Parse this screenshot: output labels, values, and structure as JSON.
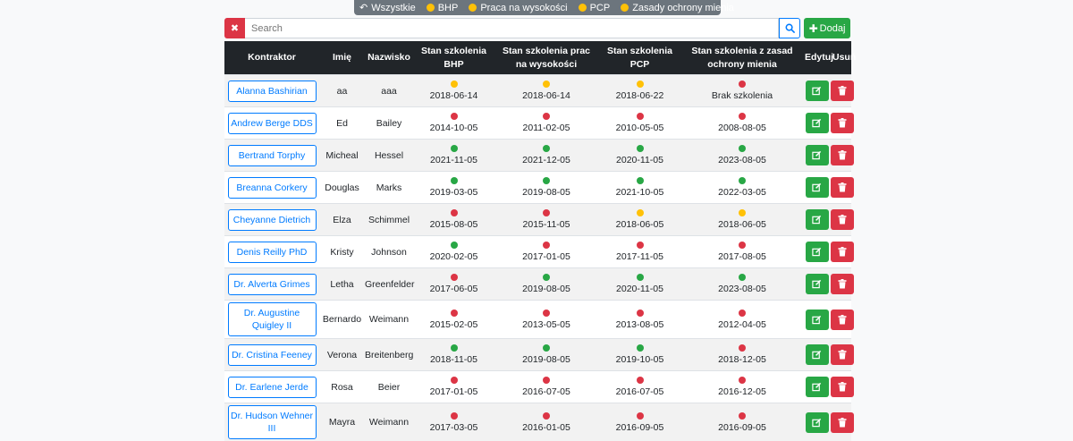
{
  "filters": [
    {
      "label": "Wszystkie",
      "icon": "undo-icon"
    },
    {
      "label": "BHP",
      "icon": "dot-icon"
    },
    {
      "label": "Praca na wysokości",
      "icon": "dot-icon"
    },
    {
      "label": "PCP",
      "icon": "dot-icon"
    },
    {
      "label": "Zasady ochrony mienia",
      "icon": "dot-icon"
    }
  ],
  "search": {
    "placeholder": "Search",
    "value": ""
  },
  "add_label": "Dodaj",
  "headers": [
    "Kontraktor",
    "Imię",
    "Nazwisko",
    "Stan szkolenia BHP",
    "Stan szkolenia prac na wysokości",
    "Stan szkolenia PCP",
    "Stan szkolenia z zasad ochrony mienia",
    "Edytuj",
    "Usuń"
  ],
  "colors": {
    "green": "#28a745",
    "red": "#dc3545",
    "yellow": "#ffc107",
    "blue": "#007bff",
    "dark": "#212529"
  },
  "rows": [
    {
      "contractor": "Alanna Bashirian",
      "first": "aa",
      "last": "aaa",
      "s": [
        [
          "y",
          "2018-06-14"
        ],
        [
          "y",
          "2018-06-14"
        ],
        [
          "y",
          "2018-06-22"
        ],
        [
          "r",
          "Brak szkolenia"
        ]
      ]
    },
    {
      "contractor": "Andrew Berge DDS",
      "first": "Ed",
      "last": "Bailey",
      "s": [
        [
          "r",
          "2014-10-05"
        ],
        [
          "r",
          "2011-02-05"
        ],
        [
          "r",
          "2010-05-05"
        ],
        [
          "r",
          "2008-08-05"
        ]
      ]
    },
    {
      "contractor": "Bertrand Torphy",
      "first": "Micheal",
      "last": "Hessel",
      "s": [
        [
          "g",
          "2021-11-05"
        ],
        [
          "g",
          "2021-12-05"
        ],
        [
          "g",
          "2020-11-05"
        ],
        [
          "g",
          "2023-08-05"
        ]
      ]
    },
    {
      "contractor": "Breanna Corkery",
      "first": "Douglas",
      "last": "Marks",
      "s": [
        [
          "g",
          "2019-03-05"
        ],
        [
          "g",
          "2019-08-05"
        ],
        [
          "g",
          "2021-10-05"
        ],
        [
          "g",
          "2022-03-05"
        ]
      ]
    },
    {
      "contractor": "Cheyanne Dietrich",
      "first": "Elza",
      "last": "Schimmel",
      "s": [
        [
          "r",
          "2015-08-05"
        ],
        [
          "r",
          "2015-11-05"
        ],
        [
          "y",
          "2018-06-05"
        ],
        [
          "y",
          "2018-06-05"
        ]
      ]
    },
    {
      "contractor": "Denis Reilly PhD",
      "first": "Kristy",
      "last": "Johnson",
      "s": [
        [
          "g",
          "2020-02-05"
        ],
        [
          "r",
          "2017-01-05"
        ],
        [
          "r",
          "2017-11-05"
        ],
        [
          "r",
          "2017-08-05"
        ]
      ]
    },
    {
      "contractor": "Dr. Alverta Grimes",
      "first": "Letha",
      "last": "Greenfelder",
      "s": [
        [
          "r",
          "2017-06-05"
        ],
        [
          "g",
          "2019-08-05"
        ],
        [
          "g",
          "2020-11-05"
        ],
        [
          "g",
          "2023-08-05"
        ]
      ]
    },
    {
      "contractor": "Dr. Augustine Quigley II",
      "first": "Bernardo",
      "last": "Weimann",
      "s": [
        [
          "r",
          "2015-02-05"
        ],
        [
          "r",
          "2013-05-05"
        ],
        [
          "r",
          "2013-08-05"
        ],
        [
          "r",
          "2012-04-05"
        ]
      ]
    },
    {
      "contractor": "Dr. Cristina Feeney",
      "first": "Verona",
      "last": "Breitenberg",
      "s": [
        [
          "g",
          "2018-11-05"
        ],
        [
          "g",
          "2019-08-05"
        ],
        [
          "g",
          "2019-10-05"
        ],
        [
          "r",
          "2018-12-05"
        ]
      ]
    },
    {
      "contractor": "Dr. Earlene Jerde",
      "first": "Rosa",
      "last": "Beier",
      "s": [
        [
          "r",
          "2017-01-05"
        ],
        [
          "r",
          "2016-07-05"
        ],
        [
          "r",
          "2016-07-05"
        ],
        [
          "r",
          "2016-12-05"
        ]
      ]
    },
    {
      "contractor": "Dr. Hudson Wehner III",
      "first": "Mayra",
      "last": "Weimann",
      "s": [
        [
          "r",
          "2017-03-05"
        ],
        [
          "r",
          "2016-01-05"
        ],
        [
          "r",
          "2016-09-05"
        ],
        [
          "r",
          "2016-09-05"
        ]
      ]
    }
  ]
}
